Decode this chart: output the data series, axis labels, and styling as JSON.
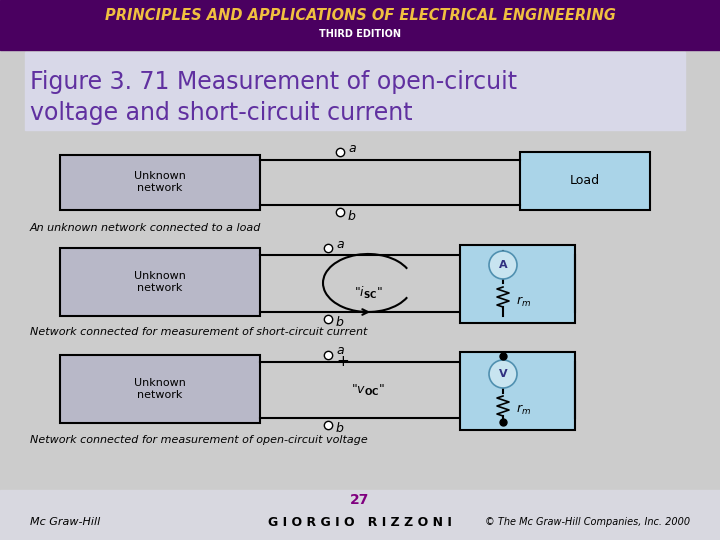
{
  "header_text": "PRINCIPLES AND APPLICATIONS OF ELECTRICAL ENGINEERING",
  "header_sub": "THIRD EDITION",
  "header_bg": "#4a0060",
  "header_text_color": "#f0c040",
  "header_sub_color": "#ffffff",
  "title_text_line1": "Figure 3. 71 Measurement of open-circuit",
  "title_text_line2": "voltage and short-circuit current",
  "title_bg": "#d8d8e8",
  "title_text_color": "#6030a0",
  "diagram_bg": "#cccccc",
  "box_unknown_color": "#b8b8c8",
  "box_meter_color": "#aad4e8",
  "box_load_color": "#aad4e8",
  "wire_color": "#000000",
  "footer_bg": "#d8d8e0",
  "footer_text_color": "#800080",
  "footer_left": "Mc Graw-Hill",
  "footer_center": "G I O R G I O   R I Z Z O N I",
  "footer_right": "© The Mc Graw-Hill Companies, Inc. 2000",
  "page_number": "27"
}
